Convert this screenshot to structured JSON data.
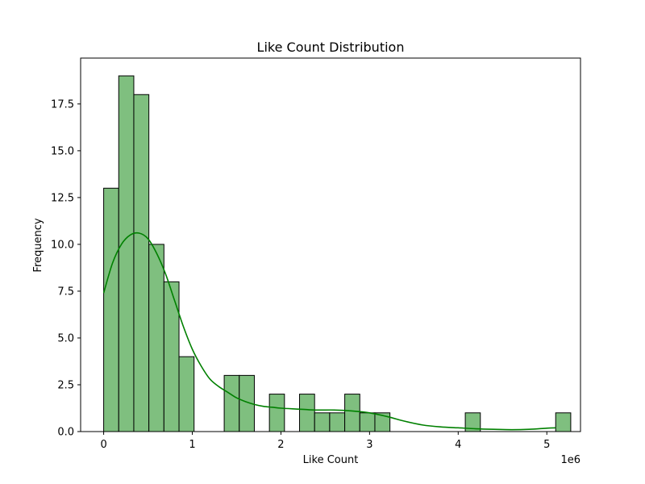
{
  "chart_data": {
    "type": "bar",
    "subtype": "histogram-with-kde",
    "title": "Like Count Distribution",
    "xlabel": "Like Count",
    "ylabel": "Frequency",
    "x_offset_label": "1e6",
    "xlim": [
      -0.26,
      5.38
    ],
    "ylim": [
      0,
      19.95
    ],
    "x_ticks": [
      0,
      1,
      2,
      3,
      4,
      5
    ],
    "x_tick_labels": [
      "0",
      "1",
      "2",
      "3",
      "4",
      "5"
    ],
    "y_ticks": [
      0,
      2.5,
      5,
      7.5,
      10,
      12.5,
      15,
      17.5
    ],
    "y_tick_labels": [
      "0.0",
      "2.5",
      "5.0",
      "7.5",
      "10.0",
      "12.5",
      "15.0",
      "17.5"
    ],
    "bin_width": 0.17,
    "bin_edges_start": 0,
    "counts": [
      13,
      19,
      18,
      10,
      8,
      4,
      0,
      0,
      3,
      3,
      0,
      2,
      0,
      2,
      1,
      1,
      2,
      1,
      1,
      0,
      0,
      0,
      0,
      0,
      1,
      0,
      0,
      0,
      0,
      0,
      1
    ],
    "bar_fill_color": "#7fbf7f",
    "bar_edge_color": "#000000",
    "kde_color": "#008000",
    "kde_x": [
      0,
      0.1,
      0.2,
      0.3,
      0.4,
      0.5,
      0.6,
      0.7,
      0.8,
      0.9,
      1.0,
      1.1,
      1.2,
      1.3,
      1.4,
      1.5,
      1.6,
      1.7,
      1.8,
      1.9,
      2.0,
      2.2,
      2.4,
      2.6,
      2.8,
      3.0,
      3.2,
      3.4,
      3.6,
      3.8,
      4.0,
      4.2,
      4.4,
      4.6,
      4.8,
      5.0,
      5.1
    ],
    "kde_y": [
      7.4,
      9.0,
      10.0,
      10.5,
      10.6,
      10.3,
      9.5,
      8.4,
      7.0,
      5.6,
      4.4,
      3.5,
      2.8,
      2.4,
      2.1,
      1.8,
      1.6,
      1.45,
      1.35,
      1.3,
      1.25,
      1.2,
      1.15,
      1.15,
      1.1,
      1.0,
      0.8,
      0.55,
      0.35,
      0.25,
      0.2,
      0.15,
      0.12,
      0.1,
      0.12,
      0.18,
      0.2
    ]
  }
}
